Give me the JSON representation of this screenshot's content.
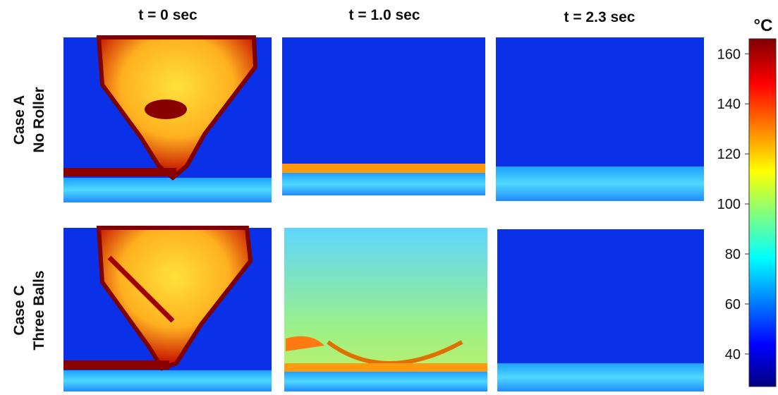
{
  "columns": [
    "t = 0 sec",
    "t = 1.0 sec",
    "t = 2.3 sec"
  ],
  "rows": [
    {
      "case": "Case A",
      "label": "No Roller"
    },
    {
      "case": "Case C",
      "label": "Three Balls"
    }
  ],
  "colorbar": {
    "unit": "°C",
    "lim": [
      27,
      166
    ],
    "ticks": [
      40,
      60,
      80,
      100,
      120,
      140,
      160
    ]
  }
}
